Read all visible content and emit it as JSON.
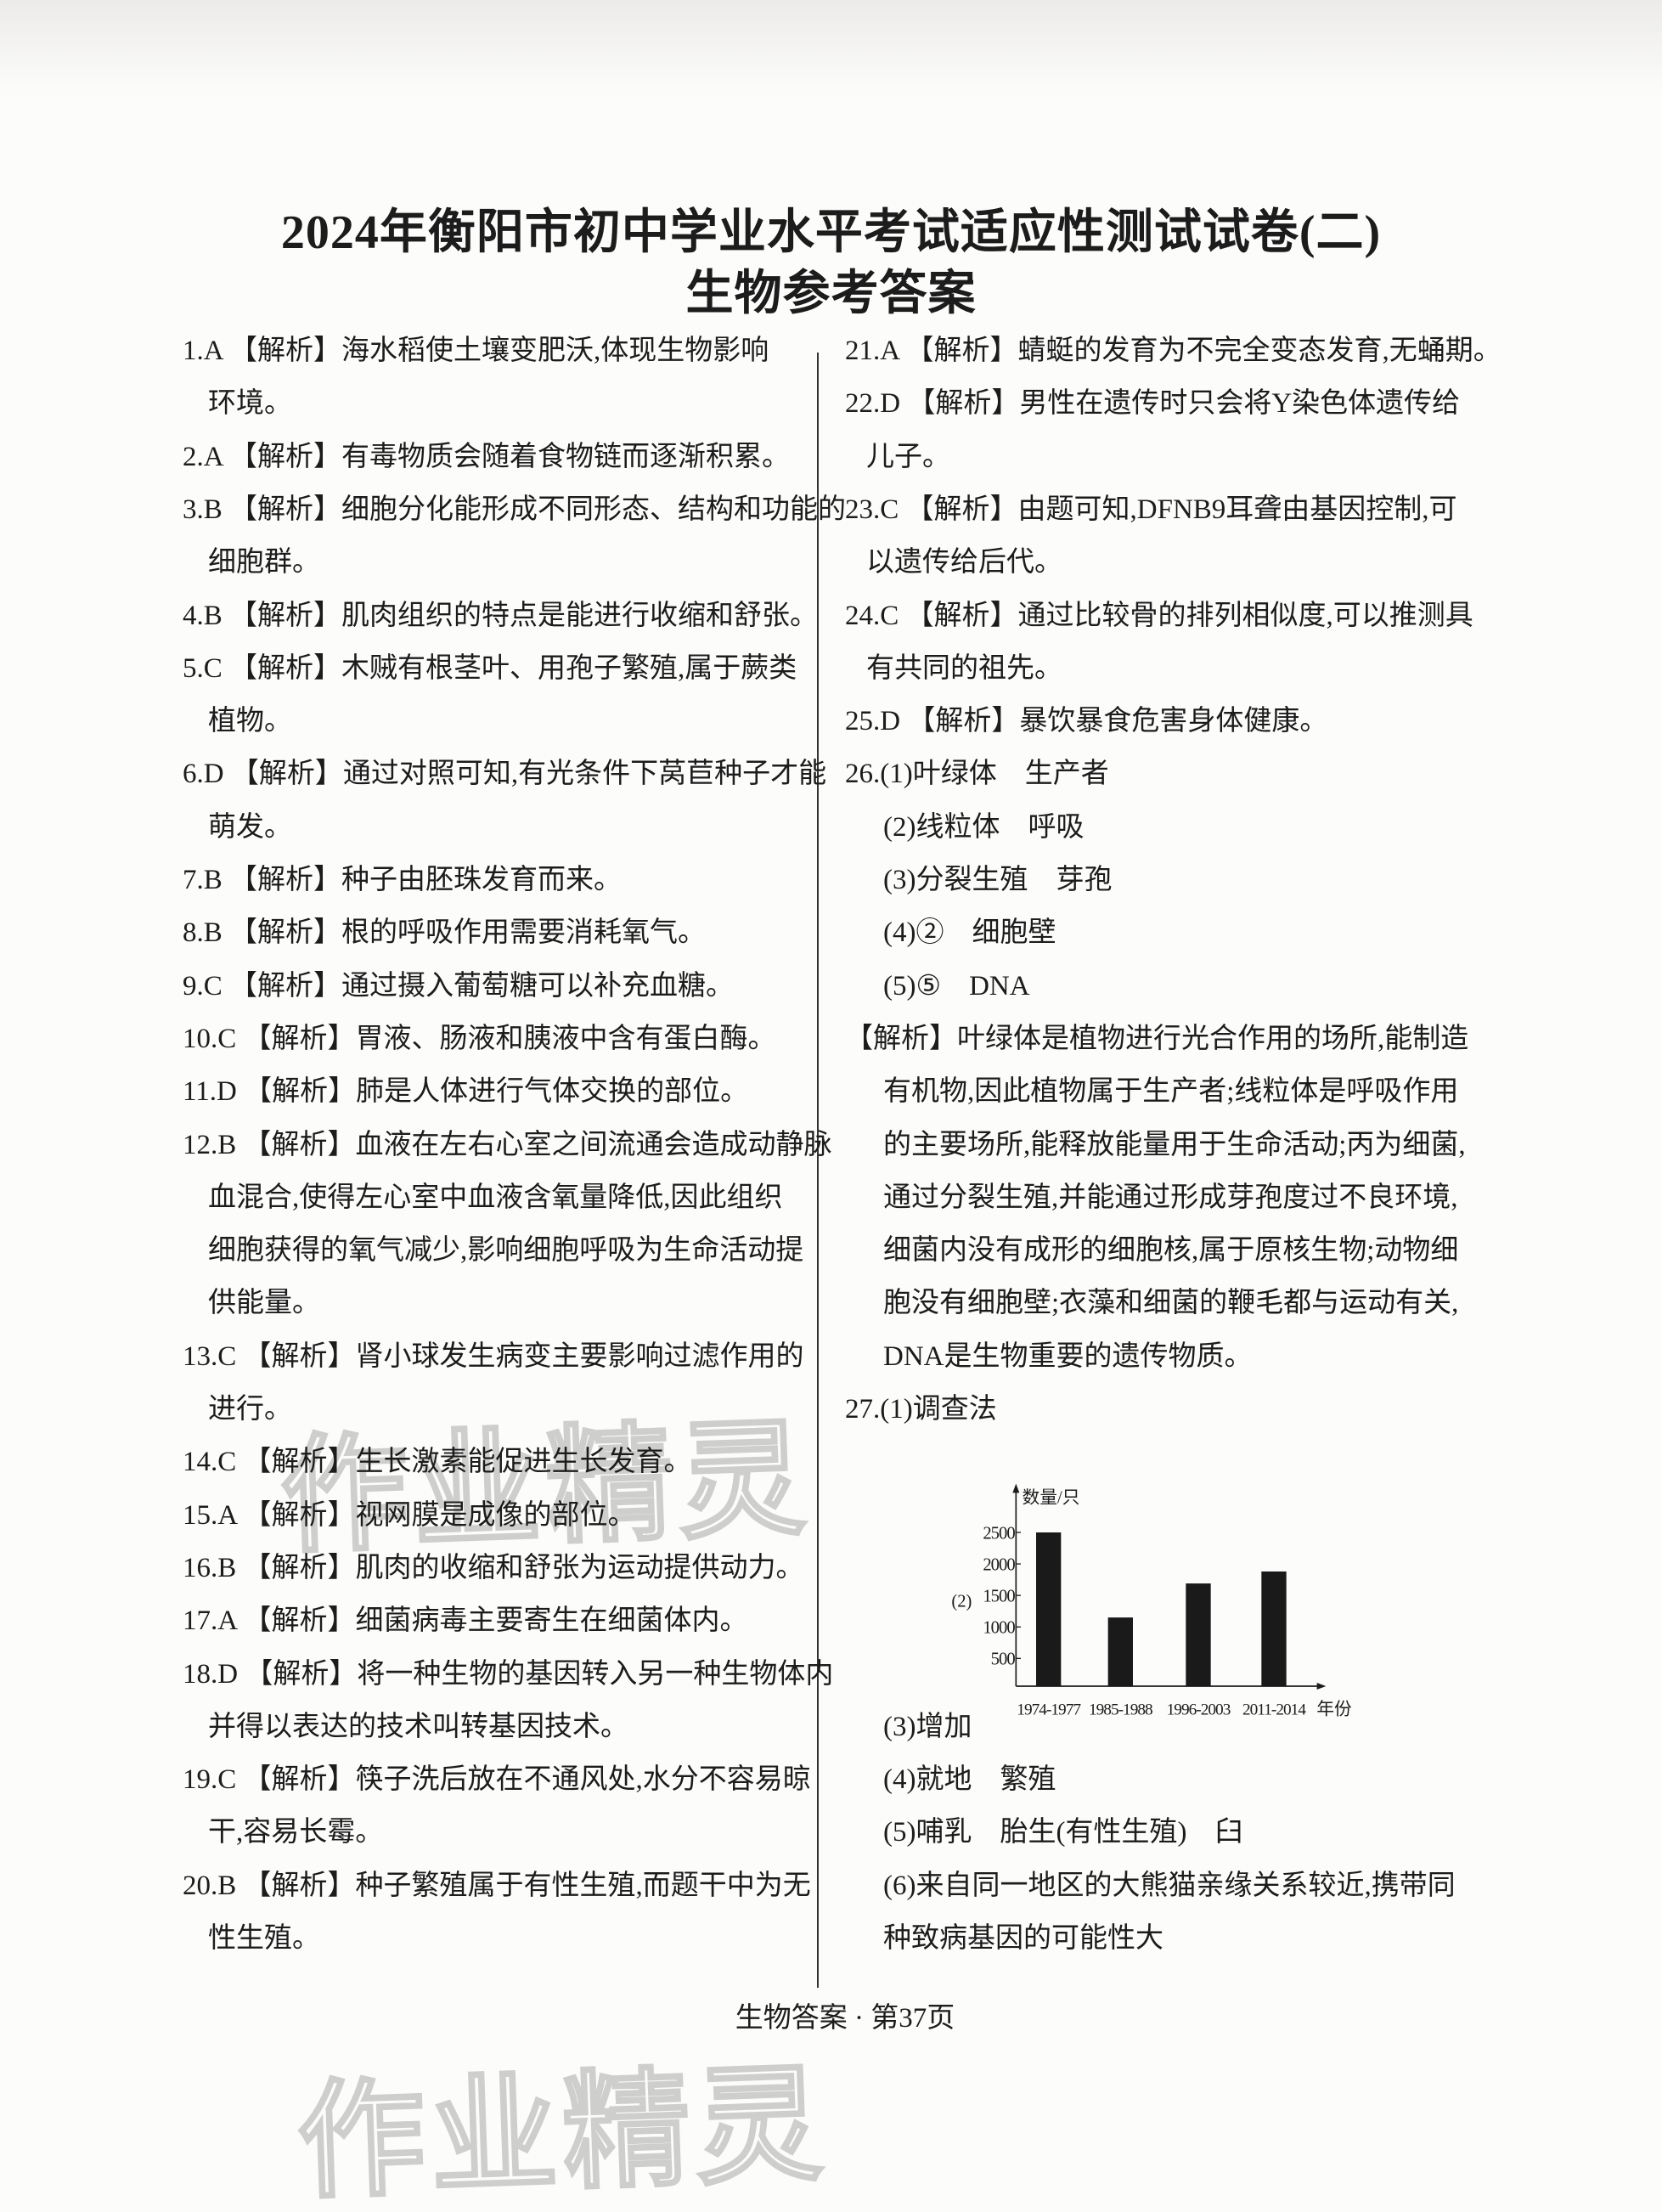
{
  "title": {
    "line1": "2024年衡阳市初中学业水平考试适应性测试试卷(二)",
    "line2": "生物参考答案"
  },
  "left_column": [
    {
      "lines": [
        "1.A 【解析】海水稻使土壤变肥沃,体现生物影响",
        "环境。"
      ]
    },
    {
      "lines": [
        "2.A 【解析】有毒物质会随着食物链而逐渐积累。"
      ]
    },
    {
      "lines": [
        "3.B 【解析】细胞分化能形成不同形态、结构和功能的",
        "细胞群。"
      ]
    },
    {
      "lines": [
        "4.B 【解析】肌肉组织的特点是能进行收缩和舒张。"
      ]
    },
    {
      "lines": [
        "5.C 【解析】木贼有根茎叶、用孢子繁殖,属于蕨类",
        "植物。"
      ]
    },
    {
      "lines": [
        "6.D 【解析】通过对照可知,有光条件下莴苣种子才能",
        "萌发。"
      ]
    },
    {
      "lines": [
        "7.B 【解析】种子由胚珠发育而来。"
      ]
    },
    {
      "lines": [
        "8.B 【解析】根的呼吸作用需要消耗氧气。"
      ]
    },
    {
      "lines": [
        "9.C 【解析】通过摄入葡萄糖可以补充血糖。"
      ]
    },
    {
      "lines": [
        "10.C 【解析】胃液、肠液和胰液中含有蛋白酶。"
      ]
    },
    {
      "lines": [
        "11.D 【解析】肺是人体进行气体交换的部位。"
      ]
    },
    {
      "lines": [
        "12.B 【解析】血液在左右心室之间流通会造成动静脉",
        "血混合,使得左心室中血液含氧量降低,因此组织",
        "细胞获得的氧气减少,影响细胞呼吸为生命活动提",
        "供能量。"
      ]
    },
    {
      "lines": [
        "13.C 【解析】肾小球发生病变主要影响过滤作用的",
        "进行。"
      ]
    },
    {
      "lines": [
        "14.C 【解析】生长激素能促进生长发育。"
      ]
    },
    {
      "lines": [
        "15.A 【解析】视网膜是成像的部位。"
      ]
    },
    {
      "lines": [
        "16.B 【解析】肌肉的收缩和舒张为运动提供动力。"
      ]
    },
    {
      "lines": [
        "17.A 【解析】细菌病毒主要寄生在细菌体内。"
      ]
    },
    {
      "lines": [
        "18.D 【解析】将一种生物的基因转入另一种生物体内",
        "并得以表达的技术叫转基因技术。"
      ]
    },
    {
      "lines": [
        "19.C 【解析】筷子洗后放在不通风处,水分不容易晾",
        "干,容易长霉。"
      ]
    },
    {
      "lines": [
        "20.B 【解析】种子繁殖属于有性生殖,而题干中为无",
        "性生殖。"
      ]
    }
  ],
  "right_column": [
    {
      "lines": [
        "21.A 【解析】蜻蜓的发育为不完全变态发育,无蛹期。"
      ]
    },
    {
      "lines": [
        "22.D 【解析】男性在遗传时只会将Y染色体遗传给",
        "儿子。"
      ]
    },
    {
      "lines": [
        "23.C 【解析】由题可知,DFNB9耳聋由基因控制,可",
        "以遗传给后代。"
      ]
    },
    {
      "lines": [
        "24.C 【解析】通过比较骨的排列相似度,可以推测具",
        "有共同的祖先。"
      ]
    },
    {
      "lines": [
        "25.D 【解析】暴饮暴食危害身体健康。"
      ]
    },
    {
      "lines": [
        "26.(1)叶绿体　生产者"
      ]
    },
    {
      "sub": true,
      "lines": [
        "(2)线粒体　呼吸"
      ]
    },
    {
      "sub": true,
      "lines": [
        "(3)分裂生殖　芽孢"
      ]
    },
    {
      "sub": true,
      "lines": [
        "(4)②　细胞壁"
      ]
    },
    {
      "sub": true,
      "lines": [
        "(5)⑤　DNA"
      ]
    },
    {
      "lines": [
        "【解析】叶绿体是植物进行光合作用的场所,能制造",
        "有机物,因此植物属于生产者;线粒体是呼吸作用",
        "的主要场所,能释放能量用于生命活动;丙为细菌,",
        "通过分裂生殖,并能通过形成芽孢度过不良环境,",
        "细菌内没有成形的细胞核,属于原核生物;动物细",
        "胞没有细胞壁;衣藻和细菌的鞭毛都与运动有关,",
        "DNA是生物重要的遗传物质。"
      ],
      "flush": true
    },
    {
      "lines": [
        "27.(1)调查法"
      ]
    },
    {
      "chart": true
    },
    {
      "sub": true,
      "lines": [
        "(3)增加"
      ]
    },
    {
      "sub": true,
      "lines": [
        "(4)就地　繁殖"
      ]
    },
    {
      "sub": true,
      "lines": [
        "(5)哺乳　胎生(有性生殖)　臼"
      ]
    },
    {
      "sub": true,
      "lines": [
        "(6)来自同一地区的大熊猫亲缘关系较近,携带同",
        "种致病基因的可能性大"
      ]
    }
  ],
  "chart_data": {
    "type": "bar",
    "prefix": "(2)",
    "ylabel": "数量/只",
    "xlabel": "年份",
    "categories": [
      "1974-1977",
      "1985-1988",
      "1996-2003",
      "2011-2014"
    ],
    "values": [
      2500,
      1150,
      1690,
      1880
    ],
    "yticks": [
      500,
      1000,
      1500,
      2000,
      2500
    ],
    "bar_color": "#1a1a1a",
    "grid": false
  },
  "footer": "生物答案 · 第37页",
  "watermark": "作业精灵"
}
